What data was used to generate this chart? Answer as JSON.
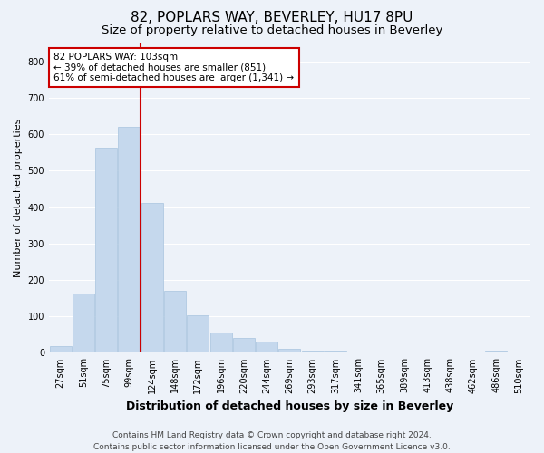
{
  "title1": "82, POPLARS WAY, BEVERLEY, HU17 8PU",
  "title2": "Size of property relative to detached houses in Beverley",
  "xlabel": "Distribution of detached houses by size in Beverley",
  "ylabel": "Number of detached properties",
  "footnote": "Contains HM Land Registry data © Crown copyright and database right 2024.\nContains public sector information licensed under the Open Government Licence v3.0.",
  "bin_labels": [
    "27sqm",
    "51sqm",
    "75sqm",
    "99sqm",
    "124sqm",
    "148sqm",
    "172sqm",
    "196sqm",
    "220sqm",
    "244sqm",
    "269sqm",
    "293sqm",
    "317sqm",
    "341sqm",
    "365sqm",
    "389sqm",
    "413sqm",
    "438sqm",
    "462sqm",
    "486sqm",
    "510sqm"
  ],
  "bar_values": [
    18,
    163,
    563,
    620,
    410,
    170,
    103,
    55,
    40,
    30,
    10,
    5,
    5,
    3,
    3,
    0,
    0,
    0,
    0,
    5,
    0
  ],
  "bar_color": "#c5d8ed",
  "bar_edgecolor": "#a8c4de",
  "vline_bin_index": 3.5,
  "annotation_line1": "82 POPLARS WAY: 103sqm",
  "annotation_line2": "← 39% of detached houses are smaller (851)",
  "annotation_line3": "61% of semi-detached houses are larger (1,341) →",
  "annotation_box_edgecolor": "#cc0000",
  "annotation_box_facecolor": "#ffffff",
  "vline_color": "#cc0000",
  "ylim": [
    0,
    850
  ],
  "yticks": [
    0,
    100,
    200,
    300,
    400,
    500,
    600,
    700,
    800
  ],
  "background_color": "#edf2f9",
  "plot_bg_color": "#edf2f9",
  "grid_color": "#ffffff",
  "title1_fontsize": 11,
  "title2_fontsize": 9.5,
  "xlabel_fontsize": 9,
  "ylabel_fontsize": 8,
  "tick_fontsize": 7,
  "annotation_fontsize": 7.5,
  "footnote_fontsize": 6.5
}
